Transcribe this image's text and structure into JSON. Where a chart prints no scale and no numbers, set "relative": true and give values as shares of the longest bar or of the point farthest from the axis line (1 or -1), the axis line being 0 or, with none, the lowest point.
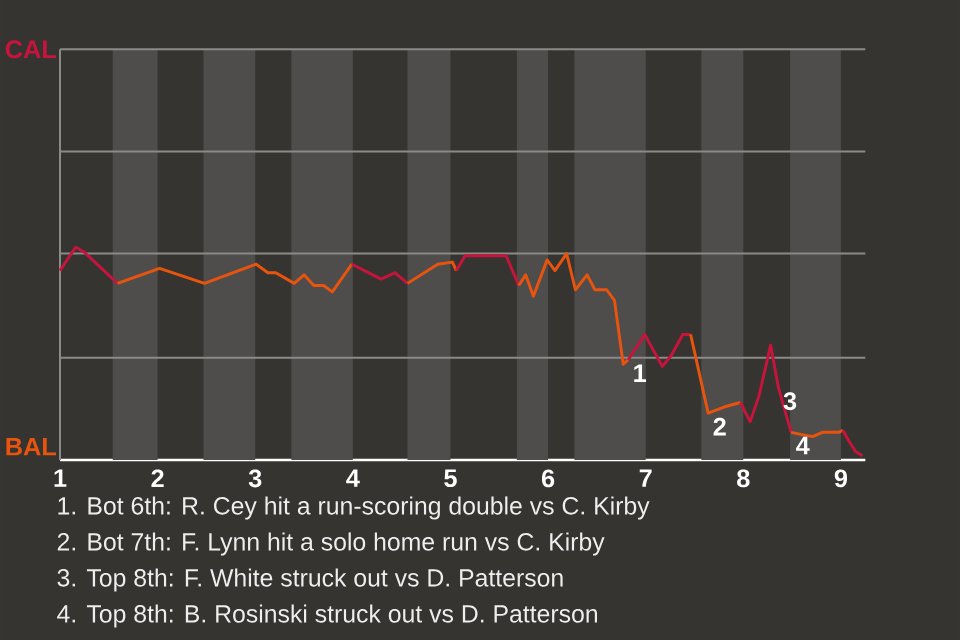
{
  "chart_data": {
    "type": "line",
    "relative": true,
    "series": [
      {
        "color": "#c8143c",
        "x": [
          1.0,
          1.16,
          1.24,
          1.59
        ],
        "values": [
          0.89,
          1,
          0.98,
          0.83
        ]
      },
      {
        "color": "#e8540e",
        "x": [
          1.59,
          2.02,
          2.48,
          3.01,
          3.13,
          3.21,
          3.4,
          3.5,
          3.6,
          3.7,
          3.79,
          3.99
        ],
        "values": [
          0.83,
          0.9,
          0.83,
          0.92,
          0.88,
          0.88,
          0.83,
          0.87,
          0.82,
          0.82,
          0.79,
          0.92
        ]
      },
      {
        "color": "#c8143c",
        "x": [
          3.99,
          4.29,
          4.43,
          4.56
        ],
        "values": [
          0.92,
          0.85,
          0.88,
          0.83
        ]
      },
      {
        "color": "#e8540e",
        "x": [
          4.56,
          4.87,
          5.02,
          5.06
        ],
        "values": [
          0.83,
          0.92,
          0.93,
          0.89
        ]
      },
      {
        "color": "#c8143c",
        "x": [
          5.06,
          5.15,
          5.57,
          5.7
        ],
        "values": [
          0.89,
          0.96,
          0.96,
          0.82
        ]
      },
      {
        "color": "#e8540e",
        "x": [
          5.7,
          5.77,
          5.85,
          5.99,
          6.07,
          6.19,
          6.28,
          6.4,
          6.48,
          6.6,
          6.68,
          6.77,
          6.82
        ],
        "values": [
          0.82,
          0.87,
          0.77,
          0.94,
          0.89,
          0.97,
          0.8,
          0.87,
          0.8,
          0.8,
          0.75,
          0.45,
          0.47
        ]
      },
      {
        "color": "#c8143c",
        "x": [
          6.82,
          6.99,
          7.17,
          7.26,
          7.38,
          7.46
        ],
        "values": [
          0.47,
          0.59,
          0.44,
          0.49,
          0.59,
          0.59
        ]
      },
      {
        "color": "#e8540e",
        "x": [
          7.46,
          7.64,
          7.81,
          7.97
        ],
        "values": [
          0.59,
          0.22,
          0.25,
          0.27
        ]
      },
      {
        "color": "#c8143c",
        "x": [
          7.97,
          8.07,
          8.16,
          8.28,
          8.36,
          8.49
        ],
        "values": [
          0.27,
          0.18,
          0.3,
          0.54,
          0.34,
          0.13
        ]
      },
      {
        "color": "#e8540e",
        "x": [
          8.49,
          8.59,
          8.71,
          8.81,
          8.98,
          9.02
        ],
        "values": [
          0.13,
          0.12,
          0.11,
          0.13,
          0.13,
          0.14
        ]
      },
      {
        "color": "#c8143c",
        "x": [
          9.02,
          9.08,
          9.15,
          9.22
        ],
        "values": [
          0.14,
          0.09,
          0.04,
          0.02
        ]
      }
    ],
    "xlim": [
      1,
      9.25
    ],
    "xticks": [
      {
        "value": 1,
        "label": "1"
      },
      {
        "value": 2,
        "label": "2"
      },
      {
        "value": 3,
        "label": "3"
      },
      {
        "value": 4,
        "label": "4"
      },
      {
        "value": 5,
        "label": "5"
      },
      {
        "value": 6,
        "label": "6"
      },
      {
        "value": 7,
        "label": "7"
      },
      {
        "value": 8,
        "label": "8"
      },
      {
        "value": 9,
        "label": "9"
      }
    ],
    "ref_lines": [
      {
        "axis": "y",
        "value": 0.48,
        "color": "#8a8a88"
      },
      {
        "axis": "y",
        "value": 0.97,
        "color": "#8a8a88"
      },
      {
        "axis": "y",
        "value": 1.45,
        "color": "#8a8a88"
      },
      {
        "axis": "y",
        "value": 1.93,
        "color": "#8a8a88"
      }
    ],
    "bands": [
      {
        "axis": "x",
        "from": 1.54,
        "to": 2,
        "color": "#4e4d4b"
      },
      {
        "axis": "x",
        "from": 2.47,
        "to": 3,
        "color": "#4e4d4b"
      },
      {
        "axis": "x",
        "from": 3.37,
        "to": 4,
        "color": "#4e4d4b"
      },
      {
        "axis": "x",
        "from": 4.56,
        "to": 5,
        "color": "#4e4d4b"
      },
      {
        "axis": "x",
        "from": 5.68,
        "to": 6,
        "color": "#4e4d4b"
      },
      {
        "axis": "x",
        "from": 6.27,
        "to": 7,
        "color": "#4e4d4b"
      },
      {
        "axis": "x",
        "from": 7.57,
        "to": 8,
        "color": "#4e4d4b"
      },
      {
        "axis": "x",
        "from": 8.48,
        "to": 9,
        "color": "#4e4d4b"
      }
    ],
    "annotations": [
      "CAL",
      "BAL",
      {
        "text": "1",
        "x": 6.82,
        "y": 0.47
      },
      {
        "text": "2",
        "x": 7.64,
        "y": 0.22
      },
      {
        "text": "3",
        "x": 8.36,
        "y": 0.34
      },
      {
        "text": "4",
        "x": 8.49,
        "y": 0.13
      },
      "1. Bot 6th: R. Cey hit a run-scoring double vs C. Kirby",
      "2. Bot 7th: F. Lynn hit a solo home run vs C. Kirby",
      "3. Top 8th: F. White struck out vs D. Patterson",
      "4. Top 8th: B. Rosinski struck out vs D. Patterson"
    ]
  }
}
